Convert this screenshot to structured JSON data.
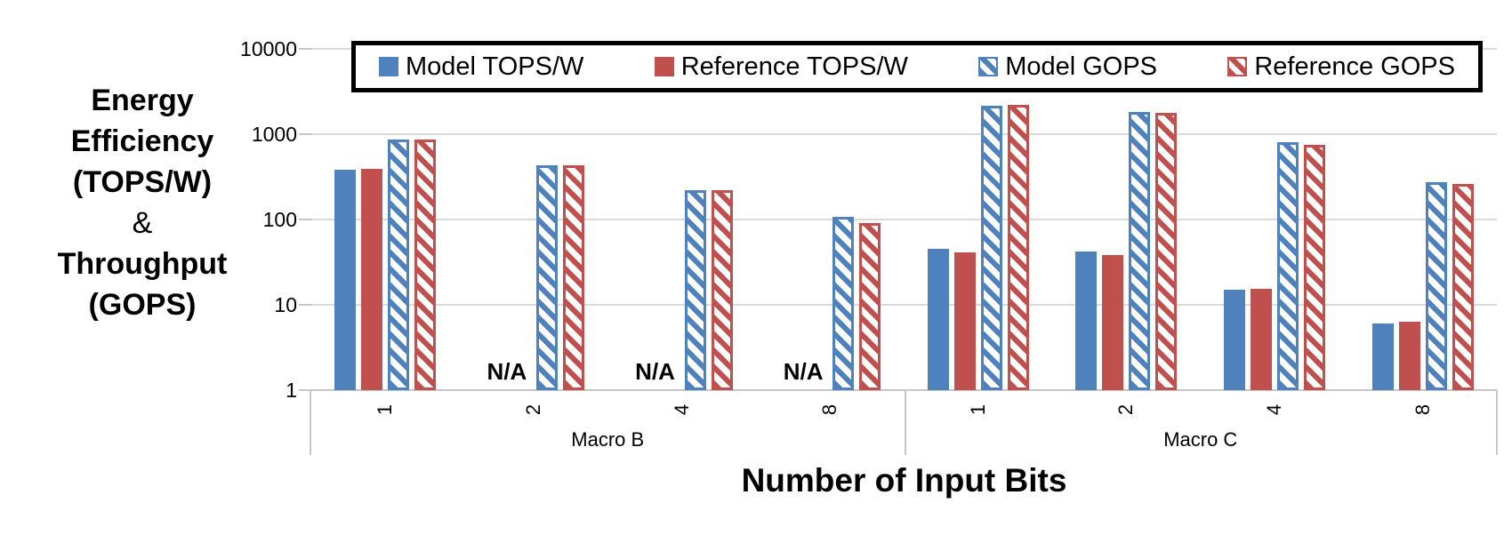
{
  "chart_data": {
    "type": "bar",
    "y_scale": "log",
    "ylim": [
      1,
      10000
    ],
    "y_ticks": [
      "10000",
      "1000",
      "100",
      "10",
      "1"
    ],
    "xlabel": "Number of Input Bits",
    "ylabel_lines": [
      "Energy",
      "Efficiency",
      "(TOPS/W)",
      "&",
      "Throughput",
      "(GOPS)"
    ],
    "na_label": "N/A",
    "legend_position": "top",
    "grid": true,
    "groups": [
      {
        "label": "Macro B",
        "bits": [
          "1",
          "2",
          "4",
          "8"
        ]
      },
      {
        "label": "Macro C",
        "bits": [
          "1",
          "2",
          "4",
          "8"
        ]
      }
    ],
    "series": [
      {
        "name": "Model TOPS/W",
        "pattern": "solid",
        "color": "#4F81BD",
        "values": [
          380,
          null,
          null,
          null,
          45,
          42,
          15,
          6
        ]
      },
      {
        "name": "Reference TOPS/W",
        "pattern": "solid",
        "color": "#C0504D",
        "values": [
          395,
          null,
          null,
          null,
          41,
          38,
          15.5,
          6.3
        ]
      },
      {
        "name": "Model GOPS",
        "pattern": "hatch",
        "color": "#4F81BD",
        "values": [
          860,
          435,
          220,
          108,
          2140,
          1800,
          815,
          277
        ]
      },
      {
        "name": "Reference GOPS",
        "pattern": "hatch",
        "color": "#C0504D",
        "values": [
          865,
          435,
          222,
          90,
          2230,
          1780,
          745,
          258
        ]
      }
    ],
    "colors": {
      "blue": "#4F81BD",
      "red": "#C0504D",
      "gridline": "#D9D9D9",
      "axis": "#C6C6C6",
      "text": "#000000"
    }
  }
}
